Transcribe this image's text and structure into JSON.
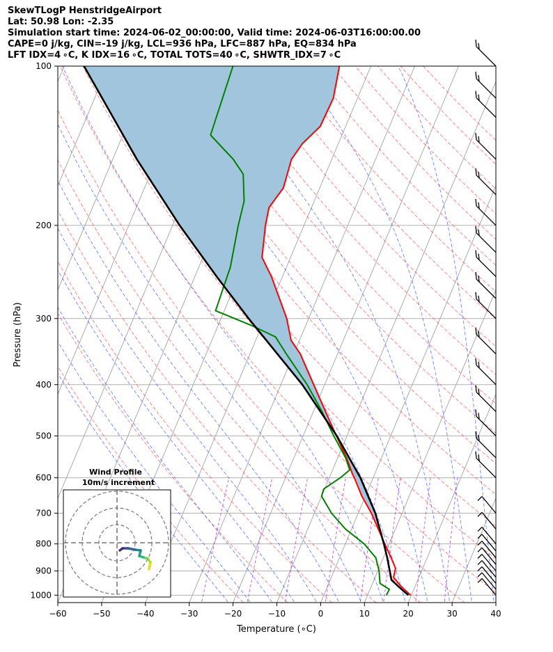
{
  "header": {
    "line1": "SkewTLogP HenstridgeAirport",
    "line2": "Lat: 50.98   Lon: -2.35",
    "line3": "Simulation start time: 2024-06-02_00:00:00, Valid time: 2024-06-03T16:00:00.00",
    "line4": "CAPE=0 j/kg, CIN=-19 j/kg, LCL=936 hPa, LFC=887 hPa, EQ=834 hPa",
    "line5": "LFT IDX=4 ∘C, K IDX=16 ∘C, TOTAL TOTS=40 ∘C, SHWTR_IDX=7 ∘C"
  },
  "chart_data": {
    "type": "line",
    "chart_kind": "skew-T log-P diagram",
    "xlabel": "Temperature (∘C)",
    "ylabel": "Pressure (hPa)",
    "xlim": [
      -60,
      40
    ],
    "ylim_hpa": [
      1050,
      100
    ],
    "y_scale": "log",
    "x_ticks": [
      -60,
      -50,
      -40,
      -30,
      -20,
      -10,
      0,
      10,
      20,
      30,
      40
    ],
    "y_ticks": [
      1000,
      900,
      800,
      700,
      600,
      500,
      400,
      300,
      200,
      100
    ],
    "grid": true,
    "colors": {
      "temperature": "#ff0000",
      "dewpoint": "#008000",
      "parcel": "#000000",
      "cape_fill": "#a2c5de",
      "dry_adiabat": "#ff4444",
      "moist_adiabat": "#3355ff",
      "mixing_ratio": "#9900cc",
      "isotherm": "#aaaaaa"
    },
    "series": [
      {
        "key": "temperature",
        "points": [
          {
            "p": 1000,
            "t": 19.8
          },
          {
            "p": 960,
            "t": 16.6
          },
          {
            "p": 925,
            "t": 14.2
          },
          {
            "p": 890,
            "t": 13.8
          },
          {
            "p": 850,
            "t": 11.8
          },
          {
            "p": 800,
            "t": 9.0
          },
          {
            "p": 700,
            "t": 3.0
          },
          {
            "p": 650,
            "t": -0.8
          },
          {
            "p": 600,
            "t": -4.3
          },
          {
            "p": 590,
            "t": -5.1
          },
          {
            "p": 550,
            "t": -8.0
          },
          {
            "p": 500,
            "t": -12.4
          },
          {
            "p": 450,
            "t": -17.2
          },
          {
            "p": 400,
            "t": -22.5
          },
          {
            "p": 350,
            "t": -28.5
          },
          {
            "p": 330,
            "t": -31.9
          },
          {
            "p": 300,
            "t": -35.0
          },
          {
            "p": 250,
            "t": -42.5
          },
          {
            "p": 230,
            "t": -46.5
          },
          {
            "p": 210,
            "t": -48.0
          },
          {
            "p": 200,
            "t": -48.8
          },
          {
            "p": 185,
            "t": -49.7
          },
          {
            "p": 170,
            "t": -48.3
          },
          {
            "p": 150,
            "t": -49.2
          },
          {
            "p": 140,
            "t": -48.2
          },
          {
            "p": 130,
            "t": -45.8
          },
          {
            "p": 115,
            "t": -45.5
          },
          {
            "p": 100,
            "t": -47.2
          }
        ]
      },
      {
        "key": "dewpoint",
        "points": [
          {
            "p": 1000,
            "t": 14.3
          },
          {
            "p": 975,
            "t": 14.4
          },
          {
            "p": 950,
            "t": 11.7
          },
          {
            "p": 900,
            "t": 10.3
          },
          {
            "p": 850,
            "t": 8.3
          },
          {
            "p": 800,
            "t": 4.3
          },
          {
            "p": 750,
            "t": -1.4
          },
          {
            "p": 700,
            "t": -6.1
          },
          {
            "p": 650,
            "t": -10.0
          },
          {
            "p": 630,
            "t": -10.2
          },
          {
            "p": 600,
            "t": -7.5
          },
          {
            "p": 580,
            "t": -6.1
          },
          {
            "p": 550,
            "t": -8.2
          },
          {
            "p": 500,
            "t": -13.0
          },
          {
            "p": 450,
            "t": -18.0
          },
          {
            "p": 400,
            "t": -24.0
          },
          {
            "p": 350,
            "t": -31.7
          },
          {
            "p": 325,
            "t": -35.8
          },
          {
            "p": 310,
            "t": -42.0
          },
          {
            "p": 290,
            "t": -52.0
          },
          {
            "p": 240,
            "t": -52.8
          },
          {
            "p": 200,
            "t": -55.0
          },
          {
            "p": 180,
            "t": -56.0
          },
          {
            "p": 160,
            "t": -58.8
          },
          {
            "p": 150,
            "t": -62.5
          },
          {
            "p": 135,
            "t": -70.0
          },
          {
            "p": 100,
            "t": -71.5
          }
        ]
      },
      {
        "key": "parcel",
        "points": [
          {
            "p": 1000,
            "t": 19.3
          },
          {
            "p": 970,
            "t": 16.8
          },
          {
            "p": 936,
            "t": 14.0
          },
          {
            "p": 850,
            "t": 10.9
          },
          {
            "p": 800,
            "t": 8.8
          },
          {
            "p": 700,
            "t": 3.9
          },
          {
            "p": 600,
            "t": -2.9
          },
          {
            "p": 500,
            "t": -12.3
          },
          {
            "p": 400,
            "t": -25.1
          },
          {
            "p": 300,
            "t": -43.7
          },
          {
            "p": 250,
            "t": -55.0
          },
          {
            "p": 200,
            "t": -68.4
          },
          {
            "p": 150,
            "t": -84.5
          },
          {
            "p": 100,
            "t": -105.5
          }
        ]
      }
    ],
    "wind_barbs_hpa": [
      1000,
      975,
      950,
      925,
      900,
      875,
      850,
      825,
      800,
      750,
      700,
      600,
      550,
      500,
      450,
      400,
      350,
      300,
      275,
      250,
      225,
      200,
      175,
      150,
      125,
      115,
      100
    ],
    "inset": {
      "title_line1": "Wind Profile",
      "title_line2": "10m/s increment",
      "ring_count": 3,
      "hodograph_colors": [
        "#e0e01f",
        "#b5de2b",
        "#6ece58",
        "#35b779",
        "#1f9e89",
        "#26828e",
        "#31688e",
        "#3e4989",
        "#482878",
        "#440154"
      ]
    }
  }
}
